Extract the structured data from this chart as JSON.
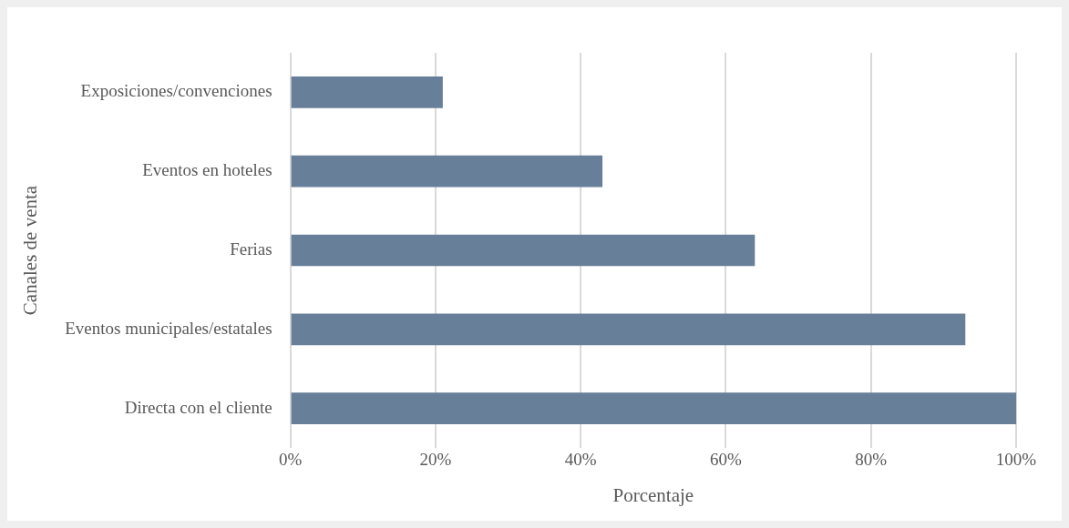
{
  "chart_data": {
    "type": "bar",
    "orientation": "horizontal",
    "xlabel": "Porcentaje",
    "ylabel": "Canales de venta",
    "categories": [
      "Exposiciones/convenciones",
      "Eventos en hoteles",
      "Ferias",
      "Eventos municipales/estatales",
      "Directa con el cliente"
    ],
    "values": [
      21,
      43,
      64,
      93,
      100
    ],
    "color": "#687f99",
    "xlim": [
      0,
      100
    ],
    "xticks": [
      {
        "value": 0,
        "label": "0%"
      },
      {
        "value": 20,
        "label": "20%"
      },
      {
        "value": 40,
        "label": "40%"
      },
      {
        "value": 60,
        "label": "60%"
      },
      {
        "value": 80,
        "label": "80%"
      },
      {
        "value": 100,
        "label": "100%"
      }
    ],
    "grid": "x",
    "legend": false
  }
}
